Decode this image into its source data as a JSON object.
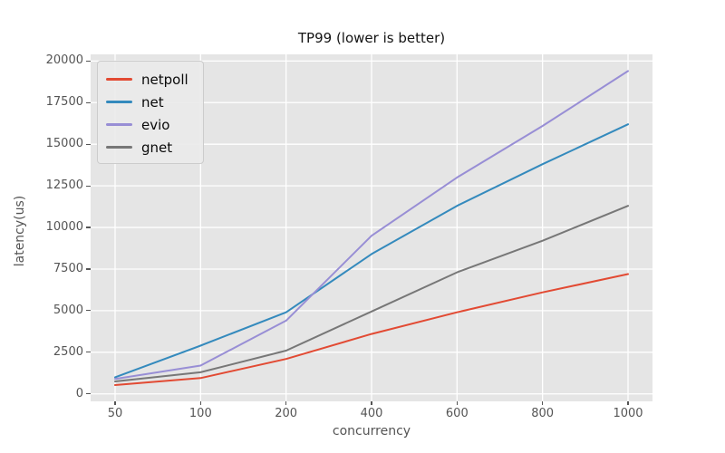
{
  "chart_data": {
    "type": "line",
    "title": "TP99 (lower is better)",
    "xlabel": "concurrency",
    "ylabel": "latency(us)",
    "categories": [
      "50",
      "100",
      "200",
      "400",
      "600",
      "800",
      "1000"
    ],
    "series": [
      {
        "name": "netpoll",
        "color": "#E24A33",
        "values": [
          530,
          950,
          2100,
          3600,
          4900,
          6100,
          7200
        ]
      },
      {
        "name": "net",
        "color": "#348ABD",
        "values": [
          1000,
          2900,
          4900,
          8400,
          11300,
          13800,
          16200
        ]
      },
      {
        "name": "evio",
        "color": "#988ED5",
        "values": [
          900,
          1700,
          4400,
          9500,
          13000,
          16100,
          19400
        ]
      },
      {
        "name": "gnet",
        "color": "#777777",
        "values": [
          750,
          1300,
          2600,
          4950,
          7300,
          9200,
          11300
        ]
      }
    ],
    "yticks": [
      0,
      2500,
      5000,
      7500,
      10000,
      12500,
      15000,
      17500,
      20000
    ],
    "ylim": [
      -450,
      20400
    ],
    "grid": "on",
    "legend_position": "upper-left",
    "style": {
      "plot_background": "#e5e5e5",
      "figure_background": "#ffffff",
      "gridline_color": "#ffffff",
      "tick_color": "#555555",
      "label_color": "#555555",
      "title_color": "#141414",
      "line_width": 2
    }
  }
}
